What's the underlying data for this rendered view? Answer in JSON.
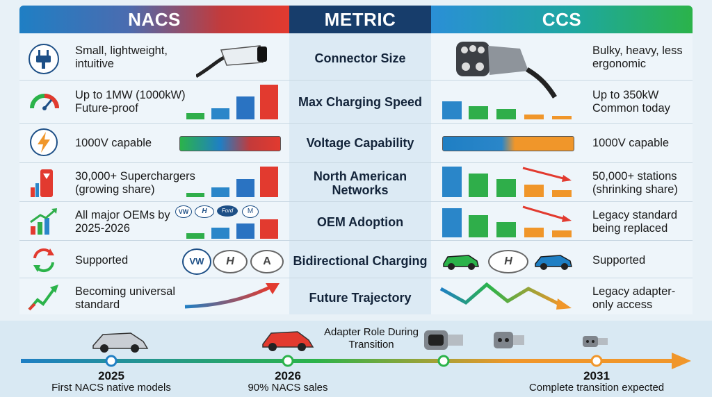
{
  "header": {
    "nacs": "NACS",
    "metric": "METRIC",
    "ccs": "CCS"
  },
  "rows": [
    {
      "metric": "Connector Size",
      "nacs_text": "Small, lightweight, intuitive",
      "ccs_text": "Bulky, heavy, less ergonomic"
    },
    {
      "metric": "Max Charging Speed",
      "nacs_text": "Up to 1MW (1000kW) Future-proof",
      "ccs_text": "Up to 350kW Common today"
    },
    {
      "metric": "Voltage Capability",
      "nacs_text": "1000V capable",
      "ccs_text": "1000V capable"
    },
    {
      "metric": "North American Networks",
      "nacs_text": "30,000+ Superchargers (growing share)",
      "ccs_text": "50,000+ stations (shrinking share)"
    },
    {
      "metric": "OEM Adoption",
      "nacs_text": "All major OEMs by 2025-2026",
      "ccs_text": "Legacy standard being replaced"
    },
    {
      "metric": "Bidirectional Charging",
      "nacs_text": "Supported",
      "ccs_text": "Supported"
    },
    {
      "metric": "Future Trajectory",
      "nacs_text": "Becoming universal standard",
      "ccs_text": "Legacy adapter-only access"
    }
  ],
  "oem_badges": [
    "VW",
    "Hyundai",
    "Ford",
    "Mazda"
  ],
  "timeline": {
    "adapter_role": "Adapter Role During Transition",
    "milestones": [
      {
        "year": "2025",
        "label": "First NACS native models"
      },
      {
        "year": "2026",
        "label": "90% NACS sales"
      },
      {
        "year": "2031",
        "label": "Complete transition expected"
      }
    ]
  },
  "colors": {
    "nacs_red": "#e23a2f",
    "ccs_blue": "#1f7fc4",
    "ccs_green": "#2bb34a",
    "ccs_orange": "#f0962a",
    "metric_navy": "#173d6b"
  }
}
